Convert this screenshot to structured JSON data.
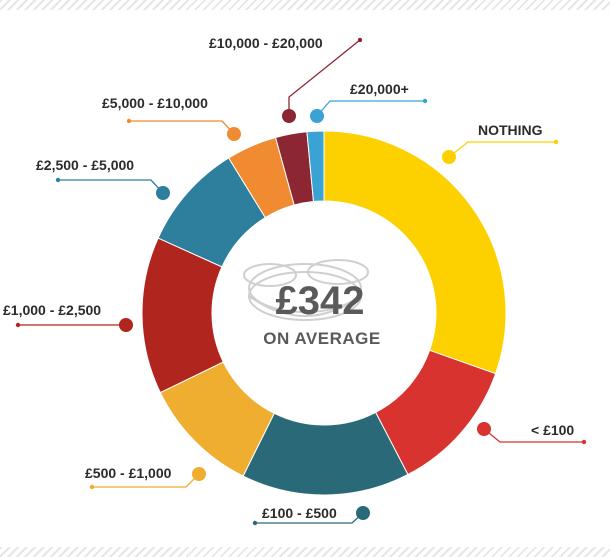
{
  "chart_data": {
    "type": "pie",
    "style": "donut",
    "center": {
      "value": "£342",
      "label": "ON AVERAGE"
    },
    "slices": [
      {
        "label": "NOTHING",
        "value": 30.5,
        "color": "#fdd100"
      },
      {
        "label": "< £100",
        "value": 12,
        "color": "#d8332f"
      },
      {
        "label": "£100 - £500",
        "value": 15,
        "color": "#2a6a78"
      },
      {
        "label": "£500 - £1,000",
        "value": 10.5,
        "color": "#efae30"
      },
      {
        "label": "£1,000 - £2,500",
        "value": 14,
        "color": "#b0261e"
      },
      {
        "label": "£2,500 - £5,000",
        "value": 9.5,
        "color": "#2e7f9e"
      },
      {
        "label": "£5,000 - £10,000",
        "value": 4.5,
        "color": "#f08b32"
      },
      {
        "label": "£10,000 - £20,000",
        "value": 2.8,
        "color": "#8b2632"
      },
      {
        "label": "£20,000+",
        "value": 1.5,
        "color": "#3aa3d4"
      }
    ]
  }
}
